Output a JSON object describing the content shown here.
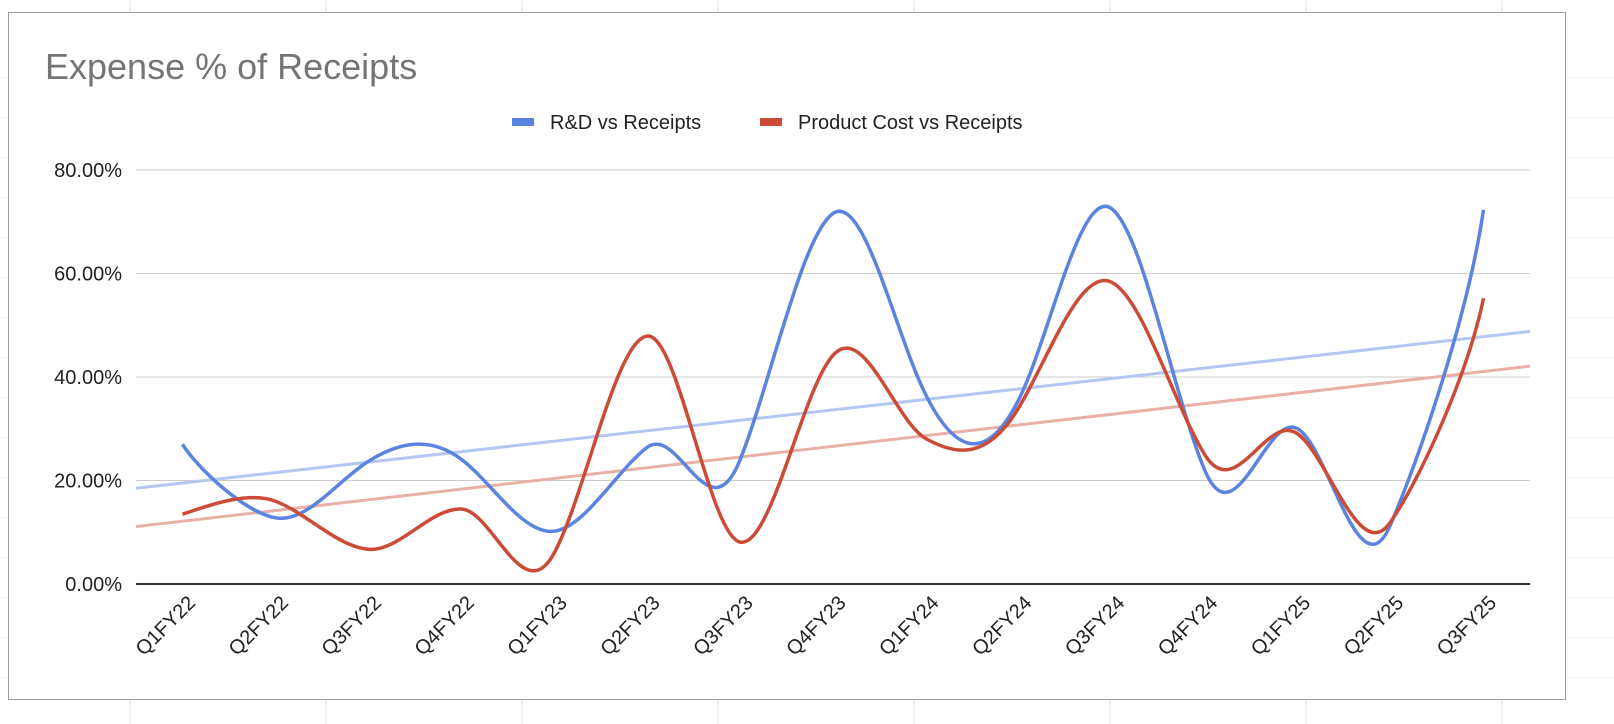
{
  "chart_data": {
    "type": "line",
    "title": "Expense % of Receipts",
    "categories": [
      "Q1FY22",
      "Q2FY22",
      "Q3FY22",
      "Q4FY22",
      "Q1FY23",
      "Q2FY23",
      "Q3FY23",
      "Q4FY23",
      "Q1FY24",
      "Q2FY24",
      "Q3FY24",
      "Q4FY24",
      "Q1FY25",
      "Q2FY25",
      "Q3FY25"
    ],
    "series": [
      {
        "name": "R&D vs Receipts",
        "color": "#5b84e0",
        "trend_color": "#b4c6f2",
        "values": [
          27.0,
          12.8,
          23.7,
          24.1,
          10.2,
          26.4,
          24.0,
          71.6,
          36.5,
          35.7,
          72.5,
          22.0,
          30.0,
          11.5,
          72.3
        ],
        "trendline": {
          "start": 18.5,
          "end": 48.8
        }
      },
      {
        "name": "Product Cost vs Receipts",
        "color": "#cc4b37",
        "trend_color": "#e8b0a6",
        "values": [
          13.5,
          16.0,
          6.7,
          14.5,
          6.0,
          47.9,
          8.1,
          44.2,
          28.1,
          34.1,
          58.3,
          25.0,
          29.0,
          12.0,
          55.2
        ],
        "trendline": {
          "start": 11.1,
          "end": 42.1
        }
      }
    ],
    "yticks": [
      "0.00%",
      "20.00%",
      "40.00%",
      "60.00%",
      "80.00%"
    ],
    "ytick_values": [
      0,
      20,
      40,
      60,
      80
    ],
    "ylim": [
      0,
      80
    ],
    "xlabel": "",
    "ylabel": "",
    "legend": "top-center",
    "grid": true,
    "smooth": true
  }
}
